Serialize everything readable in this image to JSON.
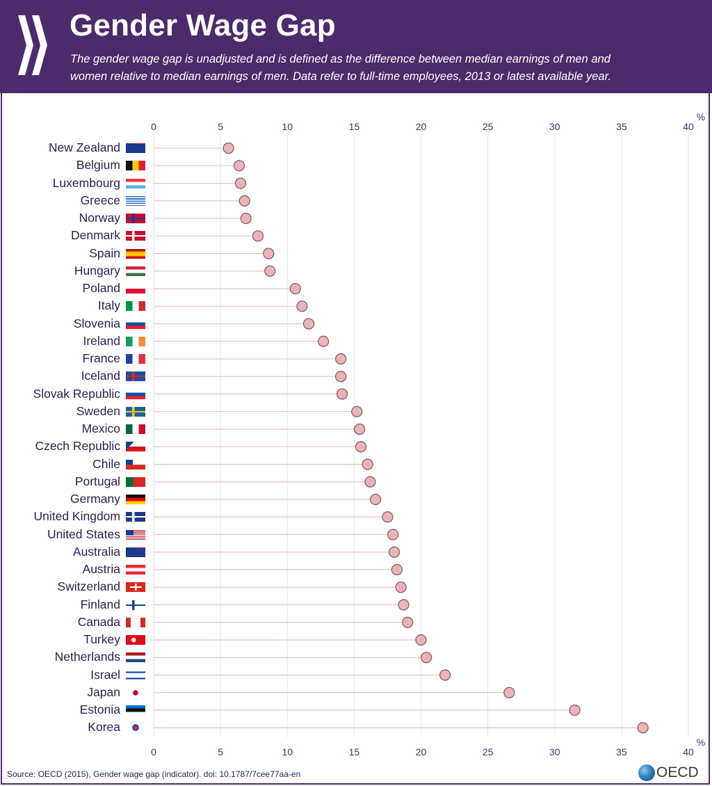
{
  "header": {
    "title": "Gender Wage Gap",
    "subtitle": "The gender wage gap is unadjusted and is defined as the difference between median earnings of men and women relative to median earnings of men. Data refer to full-time employees, 2013 or latest available year."
  },
  "footer": {
    "source": "Source: OECD (2015), Gender wage gap (indicator). doi: 10.1787/7cee77aa-en",
    "logo_text": "OECD"
  },
  "colors": {
    "header_bg": "#4a2b6b",
    "marker_fill": "#e8b4b8",
    "marker_stroke": "#7a5a60",
    "leader_line": "#e2b7bd",
    "grid": "#e6e6e6",
    "axis_text": "#4a2b6b"
  },
  "chart_data": {
    "type": "scatter",
    "title": "Gender Wage Gap",
    "xlabel": "",
    "unit_label": "%",
    "xlim": [
      0,
      40
    ],
    "ticks": [
      0,
      5,
      10,
      15,
      20,
      25,
      30,
      35,
      40
    ],
    "grid": true,
    "categories": [
      "New Zealand",
      "Belgium",
      "Luxembourg",
      "Greece",
      "Norway",
      "Denmark",
      "Spain",
      "Hungary",
      "Poland",
      "Italy",
      "Slovenia",
      "Ireland",
      "France",
      "Iceland",
      "Slovak Republic",
      "Sweden",
      "Mexico",
      "Czech Republic",
      "Chile",
      "Portugal",
      "Germany",
      "United Kingdom",
      "United States",
      "Australia",
      "Austria",
      "Switzerland",
      "Finland",
      "Canada",
      "Turkey",
      "Netherlands",
      "Israel",
      "Japan",
      "Estonia",
      "Korea"
    ],
    "values": [
      5.6,
      6.4,
      6.5,
      6.8,
      6.9,
      7.8,
      8.6,
      8.7,
      10.6,
      11.1,
      11.6,
      12.7,
      14.0,
      14.0,
      14.1,
      15.2,
      15.4,
      15.5,
      16.0,
      16.2,
      16.6,
      17.5,
      17.9,
      18.0,
      18.2,
      18.5,
      18.7,
      19.0,
      20.0,
      20.4,
      21.8,
      26.6,
      31.5,
      36.6
    ],
    "flags": [
      "nz",
      "be",
      "lu",
      "gr",
      "no",
      "dk",
      "es",
      "hu",
      "pl",
      "it",
      "si",
      "ie",
      "fr",
      "is",
      "sk",
      "se",
      "mx",
      "cz",
      "cl",
      "pt",
      "de",
      "gb",
      "us",
      "au",
      "at",
      "ch",
      "fi",
      "ca",
      "tr",
      "nl",
      "il",
      "jp",
      "ee",
      "kr"
    ]
  }
}
